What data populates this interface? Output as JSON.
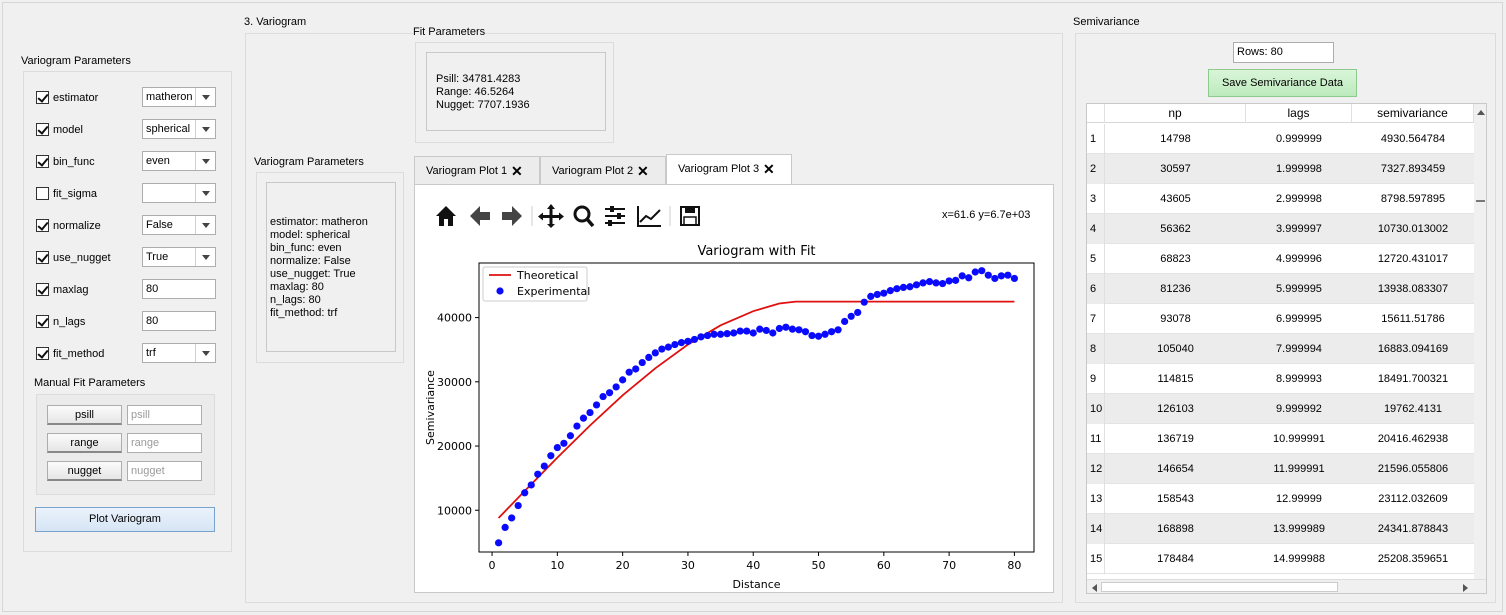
{
  "left_panel": {
    "title": "Variogram Parameters",
    "params": [
      {
        "label": "estimator",
        "checked": true,
        "type": "combo",
        "value": "matheron"
      },
      {
        "label": "model",
        "checked": true,
        "type": "combo",
        "value": "spherical"
      },
      {
        "label": "bin_func",
        "checked": true,
        "type": "combo",
        "value": "even"
      },
      {
        "label": "fit_sigma",
        "checked": false,
        "type": "combo",
        "value": ""
      },
      {
        "label": "normalize",
        "checked": true,
        "type": "combo",
        "value": "False"
      },
      {
        "label": "use_nugget",
        "checked": true,
        "type": "combo",
        "value": "True"
      },
      {
        "label": "maxlag",
        "checked": true,
        "type": "field",
        "value": "80"
      },
      {
        "label": "n_lags",
        "checked": true,
        "type": "field",
        "value": "80"
      },
      {
        "label": "fit_method",
        "checked": true,
        "type": "combo",
        "value": "trf"
      }
    ],
    "manual_title": "Manual Fit Parameters",
    "manual": [
      {
        "button": "psill",
        "placeholder": "psill"
      },
      {
        "button": "range",
        "placeholder": "range"
      },
      {
        "button": "nugget",
        "placeholder": "nugget"
      }
    ],
    "plot_button": "Plot Variogram"
  },
  "variogram_section": {
    "title": "3. Variogram",
    "fit_params_title": "Fit Parameters",
    "fit_params_lines": [
      "Psill: 34781.4283",
      "Range: 46.5264",
      "Nugget: 7707.1936"
    ],
    "params_title": "Variogram Parameters",
    "params_lines": [
      "estimator: matheron",
      "model: spherical",
      "bin_func: even",
      "normalize: False",
      "use_nugget: True",
      "maxlag: 80",
      "n_lags: 80",
      "fit_method: trf"
    ],
    "tabs": [
      "Variogram Plot 1",
      "Variogram Plot 2",
      "Variogram Plot 3"
    ],
    "active_tab": 2,
    "coord_readout": "x=61.6 y=6.7e+03",
    "toolbar_icons": [
      "home-icon",
      "back-arrow-icon",
      "forward-arrow-icon",
      "pan-icon",
      "zoom-icon",
      "configure-subplots-icon",
      "edit-axis-icon",
      "save-icon"
    ]
  },
  "chart_data": {
    "type": "scatter",
    "title": "Variogram with Fit",
    "xlabel": "Distance",
    "ylabel": "Semivariance",
    "xlim": [
      -2,
      83
    ],
    "ylim": [
      3500,
      48500
    ],
    "xticks": [
      0,
      10,
      20,
      30,
      40,
      50,
      60,
      70,
      80
    ],
    "yticks": [
      10000,
      20000,
      30000,
      40000
    ],
    "legend_position": "top-left",
    "series": [
      {
        "name": "Theoretical",
        "kind": "line",
        "color": "#e01010",
        "x": [
          1,
          5,
          10,
          15,
          20,
          25,
          30,
          35,
          40,
          44,
          46.5,
          50,
          60,
          70,
          80
        ],
        "y": [
          8800,
          13000,
          18200,
          23200,
          27900,
          32100,
          35800,
          38800,
          41000,
          42200,
          42490,
          42490,
          42490,
          42490,
          42490
        ]
      },
      {
        "name": "Experimental",
        "kind": "scatter",
        "color": "#0a0aff",
        "x": [
          1,
          2,
          3,
          4,
          5,
          6,
          7,
          8,
          9,
          10,
          11,
          12,
          13,
          14,
          15,
          16,
          17,
          18,
          19,
          20,
          21,
          22,
          23,
          24,
          25,
          26,
          27,
          28,
          29,
          30,
          31,
          32,
          33,
          34,
          35,
          36,
          37,
          38,
          39,
          40,
          41,
          42,
          43,
          44,
          45,
          46,
          47,
          48,
          49,
          50,
          51,
          52,
          53,
          54,
          55,
          56,
          57,
          58,
          59,
          60,
          61,
          62,
          63,
          64,
          65,
          66,
          67,
          68,
          69,
          70,
          71,
          72,
          73,
          74,
          75,
          76,
          77,
          78,
          79,
          80
        ],
        "y": [
          4930,
          7330,
          8800,
          10730,
          12720,
          13940,
          15610,
          16880,
          18490,
          19760,
          20420,
          21600,
          23110,
          24340,
          25210,
          26400,
          27700,
          28300,
          29200,
          30300,
          31500,
          32000,
          33000,
          33800,
          34500,
          35100,
          35400,
          35800,
          36100,
          36300,
          36600,
          37000,
          37200,
          37400,
          37400,
          37500,
          37600,
          37900,
          37900,
          37600,
          38200,
          38000,
          37600,
          38300,
          38500,
          38200,
          38100,
          37800,
          37200,
          37100,
          37400,
          37800,
          38100,
          39400,
          40200,
          40800,
          42400,
          43300,
          43600,
          43800,
          44200,
          44500,
          44700,
          44800,
          45100,
          45400,
          45600,
          45400,
          45300,
          45700,
          45800,
          46500,
          46200,
          47100,
          47300,
          46600,
          46100,
          46500,
          46600,
          46100
        ]
      }
    ]
  },
  "semivariance": {
    "title": "Semivariance",
    "rows_label": "Rows: 80",
    "save_button": "Save Semivariance Data",
    "columns": [
      "np",
      "lags",
      "semivariance"
    ],
    "rows": [
      [
        "1",
        "14798",
        "0.999999",
        "4930.564784"
      ],
      [
        "2",
        "30597",
        "1.999998",
        "7327.893459"
      ],
      [
        "3",
        "43605",
        "2.999998",
        "8798.597895"
      ],
      [
        "4",
        "56362",
        "3.999997",
        "10730.013002"
      ],
      [
        "5",
        "68823",
        "4.999996",
        "12720.431017"
      ],
      [
        "6",
        "81236",
        "5.999995",
        "13938.083307"
      ],
      [
        "7",
        "93078",
        "6.999995",
        "15611.51786"
      ],
      [
        "8",
        "105040",
        "7.999994",
        "16883.094169"
      ],
      [
        "9",
        "114815",
        "8.999993",
        "18491.700321"
      ],
      [
        "10",
        "126103",
        "9.999992",
        "19762.4131"
      ],
      [
        "11",
        "136719",
        "10.999991",
        "20416.462938"
      ],
      [
        "12",
        "146654",
        "11.999991",
        "21596.055806"
      ],
      [
        "13",
        "158543",
        "12.99999",
        "23112.032609"
      ],
      [
        "14",
        "168898",
        "13.999989",
        "24341.878843"
      ],
      [
        "15",
        "178484",
        "14.999988",
        "25208.359651"
      ]
    ]
  }
}
